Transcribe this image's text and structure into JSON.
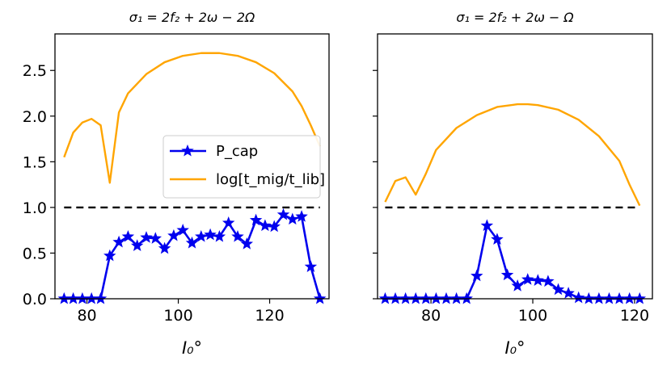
{
  "chart_data": [
    {
      "type": "line",
      "title": "σ₁ = 2f₂ + 2ω − 2Ω",
      "xlabel": "I₀°",
      "ylabel": "",
      "xlim": [
        73,
        133
      ],
      "ylim": [
        0,
        2.9
      ],
      "xticks": [
        80,
        100,
        120
      ],
      "yticks": [
        0.0,
        0.5,
        1.0,
        1.5,
        2.0,
        2.5
      ],
      "ytick_labels": [
        "0.0",
        "0.5",
        "1.0",
        "1.5",
        "2.0",
        "2.5"
      ],
      "legend_position": "center-right",
      "series": [
        {
          "name": "P_cap",
          "color": "#0000ee",
          "marker": "star",
          "x": [
            75,
            77,
            79,
            81,
            83,
            85,
            87,
            89,
            91,
            93,
            95,
            97,
            99,
            101,
            103,
            105,
            107,
            109,
            111,
            113,
            115,
            117,
            119,
            121,
            123,
            125,
            127,
            129,
            131
          ],
          "y": [
            0,
            0,
            0,
            0,
            0,
            0.47,
            0.62,
            0.68,
            0.58,
            0.67,
            0.66,
            0.55,
            0.69,
            0.75,
            0.61,
            0.68,
            0.7,
            0.68,
            0.83,
            0.68,
            0.6,
            0.86,
            0.8,
            0.79,
            0.92,
            0.87,
            0.9,
            0.35,
            0
          ]
        },
        {
          "name": "log[t_mig/t_lib]",
          "color": "#ffa500",
          "marker": "none",
          "x": [
            75,
            77,
            79,
            81,
            83,
            85,
            87,
            89,
            93,
            97,
            101,
            105,
            109,
            113,
            117,
            121,
            125,
            127,
            129,
            131
          ],
          "y": [
            1.55,
            1.82,
            1.93,
            1.97,
            1.9,
            1.27,
            2.04,
            2.25,
            2.46,
            2.59,
            2.66,
            2.69,
            2.69,
            2.66,
            2.59,
            2.47,
            2.27,
            2.11,
            1.9,
            1.67
          ]
        },
        {
          "name": "",
          "color": "#000000",
          "dash": true,
          "x": [
            75,
            131
          ],
          "y": [
            1.0,
            1.0
          ]
        }
      ]
    },
    {
      "type": "line",
      "title": "σ₁ = 2f₂ + 2ω − Ω",
      "xlabel": "I₀°",
      "ylabel": "",
      "xlim": [
        69.5,
        123.5
      ],
      "ylim": [
        0,
        2.9
      ],
      "xticks": [
        80,
        100,
        120
      ],
      "yticks": [
        0.0,
        0.5,
        1.0,
        1.5,
        2.0,
        2.5
      ],
      "series": [
        {
          "name": "P_cap",
          "color": "#0000ee",
          "marker": "star",
          "x": [
            71,
            73,
            75,
            77,
            79,
            81,
            83,
            85,
            87,
            89,
            91,
            93,
            95,
            97,
            99,
            101,
            103,
            105,
            107,
            109,
            111,
            113,
            115,
            117,
            119,
            121
          ],
          "y": [
            0,
            0,
            0,
            0,
            0,
            0,
            0,
            0,
            0,
            0.25,
            0.8,
            0.65,
            0.26,
            0.14,
            0.21,
            0.2,
            0.19,
            0.1,
            0.06,
            0.01,
            0,
            0,
            0,
            0,
            0,
            0
          ]
        },
        {
          "name": "log[t_mig/t_lib]",
          "color": "#ffa500",
          "marker": "none",
          "x": [
            71,
            73,
            75,
            77,
            79,
            81,
            85,
            89,
            93,
            97,
            99,
            101,
            105,
            109,
            113,
            117,
            119,
            121
          ],
          "y": [
            1.06,
            1.29,
            1.33,
            1.14,
            1.37,
            1.63,
            1.87,
            2.01,
            2.1,
            2.13,
            2.13,
            2.12,
            2.07,
            1.96,
            1.78,
            1.51,
            1.25,
            1.02
          ]
        },
        {
          "name": "",
          "color": "#000000",
          "dash": true,
          "x": [
            71,
            121
          ],
          "y": [
            1.0,
            1.0
          ]
        }
      ]
    }
  ]
}
